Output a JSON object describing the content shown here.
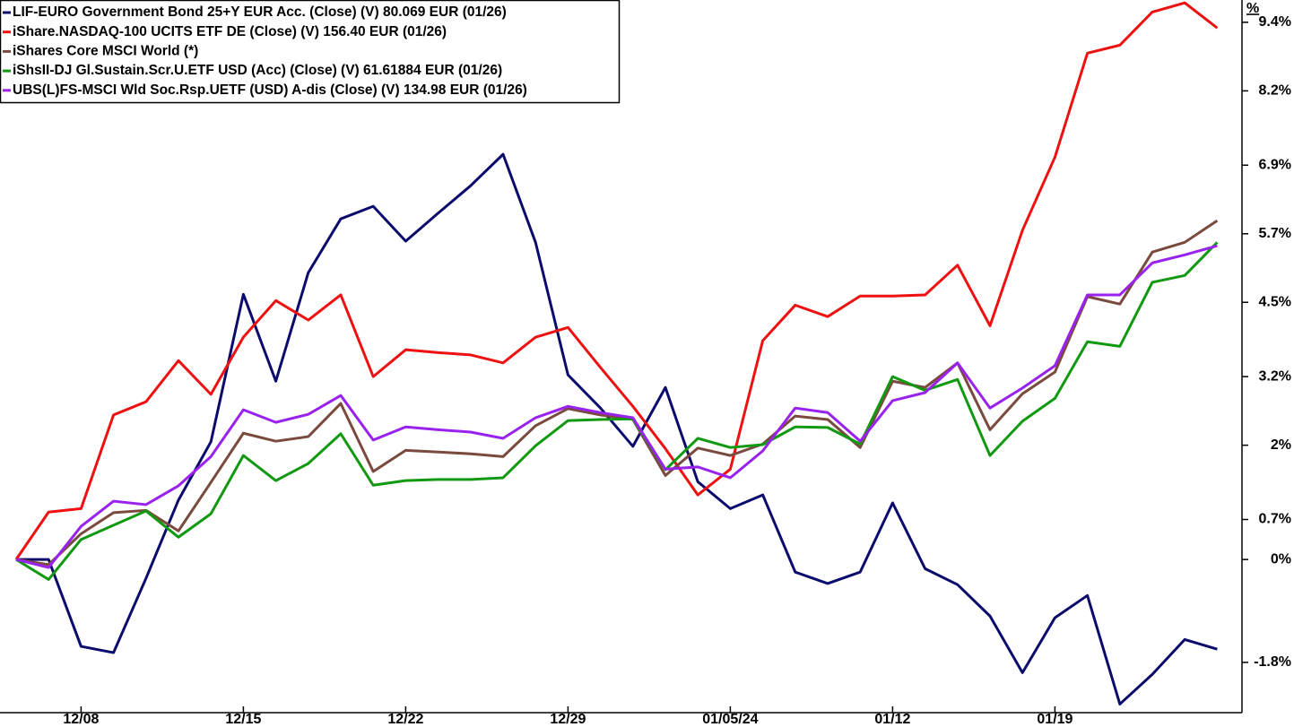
{
  "chart_data": {
    "type": "line",
    "categories": [
      null,
      null,
      "12/08",
      null,
      null,
      null,
      null,
      "12/15",
      null,
      null,
      null,
      null,
      "12/22",
      null,
      null,
      null,
      null,
      "12/29",
      null,
      null,
      null,
      null,
      "01/05/24",
      null,
      null,
      null,
      null,
      "01/12",
      null,
      null,
      null,
      null,
      "01/19",
      null,
      null,
      null,
      null,
      null
    ],
    "series": [
      {
        "name": "LIF-EURO Government Bond 25+Y EUR Acc. (Close) (V) 80.069 EUR (01/26)",
        "color": "#0b0b6e",
        "values": [
          0,
          0,
          -1.52,
          -1.63,
          -0.33,
          1.04,
          2.06,
          4.64,
          3.12,
          5.02,
          5.96,
          6.18,
          5.57,
          6.06,
          6.54,
          7.09,
          5.55,
          3.23,
          2.65,
          1.98,
          3.01,
          1.36,
          0.89,
          1.13,
          -0.22,
          -0.42,
          -0.22,
          0.99,
          -0.16,
          -0.44,
          -0.99,
          -1.98,
          -1.02,
          -0.63,
          -2.53,
          -2.01,
          -1.4,
          -1.57
        ]
      },
      {
        "name": "iShare.NASDAQ-100 UCITS ETF DE (Close) (V) 156.40 EUR (01/26)",
        "color": "#ee1111",
        "values": [
          0,
          0.83,
          0.89,
          2.53,
          2.76,
          3.48,
          2.89,
          3.89,
          4.53,
          4.19,
          4.63,
          3.2,
          3.67,
          3.62,
          3.58,
          3.44,
          3.89,
          4.06,
          3.36,
          2.68,
          1.94,
          1.13,
          1.58,
          3.83,
          4.45,
          4.25,
          4.61,
          4.61,
          4.63,
          5.15,
          4.09,
          5.76,
          7.04,
          8.86,
          9.0,
          9.58,
          9.74,
          9.3
        ]
      },
      {
        "name": "iShares Core MSCI World (*)",
        "color": "#7b4a3e",
        "values": [
          0,
          -0.09,
          0.45,
          0.82,
          0.86,
          0.5,
          1.35,
          2.21,
          2.07,
          2.15,
          2.73,
          1.54,
          1.91,
          1.88,
          1.85,
          1.8,
          2.34,
          2.64,
          2.53,
          2.45,
          1.47,
          1.95,
          1.82,
          2.02,
          2.51,
          2.45,
          1.96,
          3.12,
          3.01,
          3.44,
          2.27,
          2.9,
          3.28,
          4.6,
          4.47,
          5.38,
          5.55,
          5.93
        ]
      },
      {
        "name": "iShsII-DJ Gl.Sustain.Scr.U.ETF USD (Acc) (Close) (V) 61.61884 EUR (01/26)",
        "color": "#119911",
        "values": [
          0,
          -0.35,
          0.35,
          0.6,
          0.85,
          0.39,
          0.8,
          1.82,
          1.38,
          1.68,
          2.2,
          1.3,
          1.38,
          1.4,
          1.4,
          1.43,
          1.99,
          2.43,
          2.45,
          2.46,
          1.57,
          2.12,
          1.96,
          2.01,
          2.32,
          2.31,
          2.02,
          3.2,
          2.96,
          3.15,
          1.82,
          2.42,
          2.82,
          3.81,
          3.73,
          4.85,
          4.97,
          5.55
        ]
      },
      {
        "name": "UBS(L)FS-MSCI Wld Soc.Rsp.UETF (USD) A-dis (Close) (V) 134.98 EUR (01/26)",
        "color": "#9922ee",
        "values": [
          0,
          -0.14,
          0.58,
          1.02,
          0.96,
          1.29,
          1.8,
          2.62,
          2.4,
          2.54,
          2.87,
          2.09,
          2.32,
          2.27,
          2.23,
          2.12,
          2.48,
          2.68,
          2.57,
          2.48,
          1.58,
          1.62,
          1.43,
          1.9,
          2.65,
          2.57,
          2.07,
          2.78,
          2.92,
          3.44,
          2.65,
          3.0,
          3.39,
          4.63,
          4.63,
          5.19,
          5.33,
          5.49
        ]
      }
    ],
    "y_axis_unit": "%",
    "ylim": [
      -2.68,
      9.79
    ],
    "yticks": [
      {
        "value": -1.8,
        "label": "-1.8%"
      },
      {
        "value": 0,
        "label": "0%"
      },
      {
        "value": 0.7,
        "label": "0.7%"
      },
      {
        "value": 2,
        "label": "2%"
      },
      {
        "value": 3.2,
        "label": "3.2%"
      },
      {
        "value": 4.5,
        "label": "4.5%"
      },
      {
        "value": 5.7,
        "label": "5.7%"
      },
      {
        "value": 6.9,
        "label": "6.9%"
      },
      {
        "value": 8.2,
        "label": "8.2%"
      },
      {
        "value": 9.4,
        "label": "9.4%"
      }
    ],
    "legend": "top-left"
  }
}
